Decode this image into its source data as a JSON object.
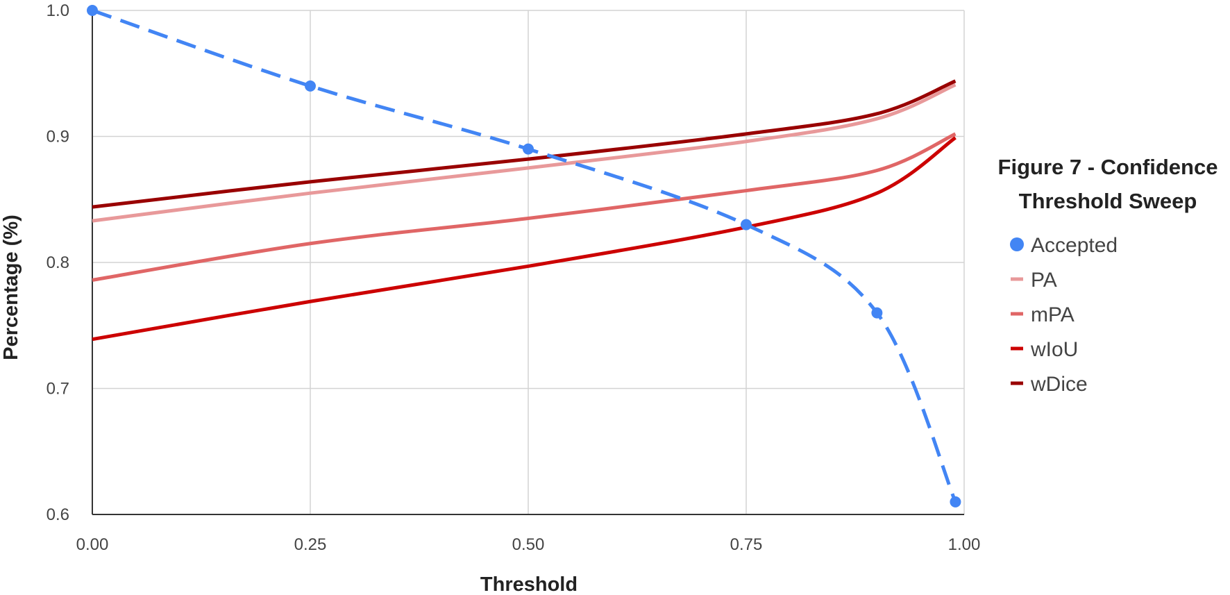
{
  "chart_data": {
    "type": "line",
    "title": [
      "Figure 7 - Confidence",
      "Threshold Sweep"
    ],
    "xlabel": "Threshold",
    "ylabel": "Percentage (%)",
    "xlim": [
      0,
      1
    ],
    "ylim": [
      0.6,
      1.0
    ],
    "x_ticks": [
      "0.00",
      "0.25",
      "0.50",
      "0.75",
      "1.00"
    ],
    "y_ticks": [
      "0.6",
      "0.7",
      "0.8",
      "0.9",
      "1.0"
    ],
    "grid": true,
    "legend_position": "right",
    "series": [
      {
        "name": "Accepted",
        "color": "#4285F4",
        "style": "dashed",
        "markers": true,
        "x": [
          0.0,
          0.25,
          0.5,
          0.75,
          0.9,
          0.99
        ],
        "y": [
          1.0,
          0.94,
          0.89,
          0.83,
          0.76,
          0.61
        ]
      },
      {
        "name": "PA",
        "color": "#E8999A",
        "style": "solid",
        "markers": false,
        "x": [
          0.0,
          0.25,
          0.5,
          0.75,
          0.9,
          0.99
        ],
        "y": [
          0.833,
          0.855,
          0.875,
          0.896,
          0.914,
          0.941
        ]
      },
      {
        "name": "mPA",
        "color": "#E06666",
        "style": "solid",
        "markers": false,
        "x": [
          0.0,
          0.25,
          0.5,
          0.75,
          0.9,
          0.99
        ],
        "y": [
          0.786,
          0.815,
          0.835,
          0.857,
          0.873,
          0.902
        ]
      },
      {
        "name": "wIoU",
        "color": "#CC0000",
        "style": "solid",
        "markers": false,
        "x": [
          0.0,
          0.25,
          0.5,
          0.75,
          0.9,
          0.99
        ],
        "y": [
          0.739,
          0.769,
          0.797,
          0.828,
          0.855,
          0.899
        ]
      },
      {
        "name": "wDice",
        "color": "#990000",
        "style": "solid",
        "markers": false,
        "x": [
          0.0,
          0.25,
          0.5,
          0.75,
          0.9,
          0.99
        ],
        "y": [
          0.844,
          0.864,
          0.882,
          0.902,
          0.918,
          0.944
        ]
      }
    ]
  }
}
